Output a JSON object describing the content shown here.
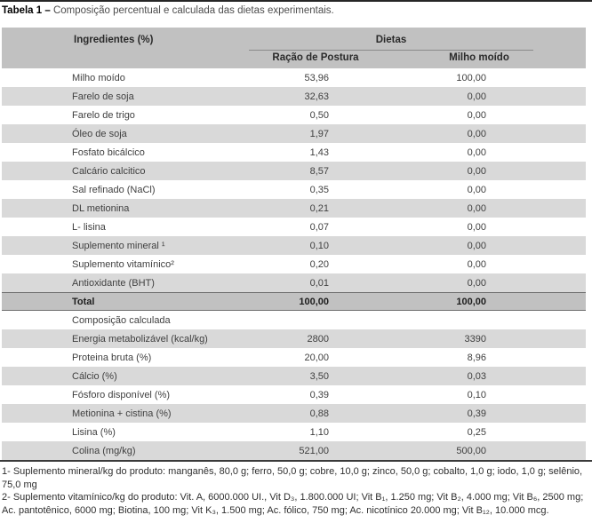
{
  "title": {
    "label": "Tabela 1 –",
    "text": " Composição percentual e calculada das dietas experimentais."
  },
  "table": {
    "ingredients_header": "Ingredientes (%)",
    "group_header": "Dietas",
    "columns": [
      "Ração de Postura",
      "Milho moído"
    ],
    "rows": [
      {
        "label": "Milho moído",
        "v1": "53,96",
        "v2": "100,00"
      },
      {
        "label": "Farelo de soja",
        "v1": "32,63",
        "v2": "0,00"
      },
      {
        "label": "Farelo de trigo",
        "v1": "0,50",
        "v2": "0,00"
      },
      {
        "label": "Óleo de soja",
        "v1": "1,97",
        "v2": "0,00"
      },
      {
        "label": "Fosfato bicálcico",
        "v1": "1,43",
        "v2": "0,00"
      },
      {
        "label": "Calcário calcitico",
        "v1": "8,57",
        "v2": "0,00"
      },
      {
        "label": "Sal refinado (NaCl)",
        "v1": "0,35",
        "v2": "0,00"
      },
      {
        "label": "DL metionina",
        "v1": "0,21",
        "v2": "0,00"
      },
      {
        "label": "L- lisina",
        "v1": "0,07",
        "v2": "0,00"
      },
      {
        "label": "Suplemento mineral ¹",
        "v1": "0,10",
        "v2": "0,00"
      },
      {
        "label": "Suplemento vitamínico²",
        "v1": "0,20",
        "v2": "0,00"
      },
      {
        "label": "Antioxidante (BHT)",
        "v1": "0,01",
        "v2": "0,00"
      }
    ],
    "total": {
      "label": "Total",
      "v1": "100,00",
      "v2": "100,00"
    },
    "section_label": "Composição calculada",
    "calc_rows": [
      {
        "label": "Energia metabolizável (kcal/kg)",
        "v1": "2800",
        "v2": "3390"
      },
      {
        "label": "Proteina bruta (%)",
        "v1": "20,00",
        "v2": "8,96"
      },
      {
        "label": "Cálcio (%)",
        "v1": "3,50",
        "v2": "0,03"
      },
      {
        "label": "Fósforo disponível (%)",
        "v1": "0,39",
        "v2": "0,10"
      },
      {
        "label": "Metionina + cistina (%)",
        "v1": "0,88",
        "v2": "0,39"
      },
      {
        "label": "Lisina (%)",
        "v1": "1,10",
        "v2": "0,25"
      },
      {
        "label": "Colina (mg/kg)",
        "v1": "521,00",
        "v2": "500,00"
      }
    ]
  },
  "footnotes": [
    "1- Suplemento mineral/kg do produto: manganês, 80,0 g; ferro, 50,0 g; cobre, 10,0 g; zinco, 50,0 g; cobalto, 1,0 g; iodo, 1,0 g;  selênio, 75,0 mg",
    "2- Suplemento vitamínico/kg do produto: Vit. A, 6000.000 UI., Vit D₃, 1.800.000 UI; Vit B₁, 1.250 mg; Vit B₂, 4.000 mg; Vit B₆, 2500 mg; Ac. pantotênico, 6000 mg; Biotina, 100 mg; Vit K₃, 1.500 mg; Ac. fólico, 750 mg; Ac. nicotínico 20.000 mg; Vit B₁₂, 10.000 mcg."
  ],
  "colors": {
    "header_gray": "#c1c1c1",
    "stripe_gray": "#d9d9d9",
    "rule_dark": "#3a3a3a",
    "rule_medium": "#6e6e6e",
    "underline_gray": "#8a8a8a"
  }
}
